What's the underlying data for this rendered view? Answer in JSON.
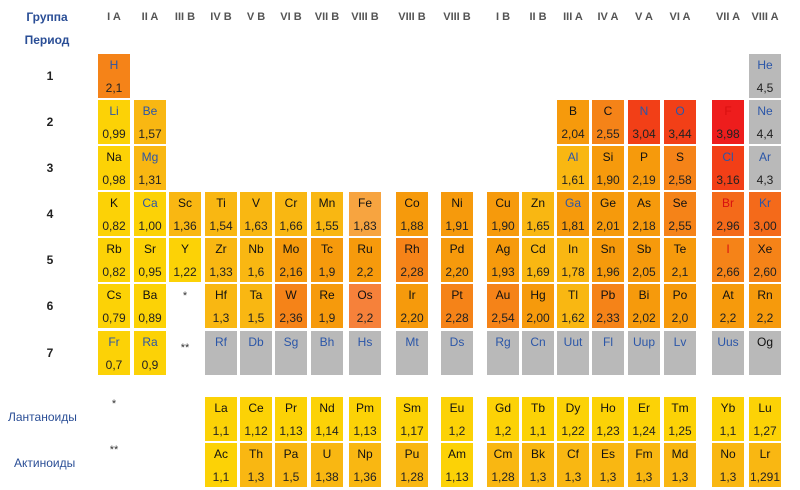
{
  "header": {
    "group_label": "Группа",
    "period_label": "Период",
    "groups": [
      "I A",
      "II A",
      "III B",
      "IV B",
      "V B",
      "VI B",
      "VII B",
      "VIII B",
      "VIII B",
      "VIII B",
      "I B",
      "II B",
      "III A",
      "IV A",
      "V A",
      "VI A",
      "VII A",
      "VIII A"
    ]
  },
  "periods": [
    "1",
    "2",
    "3",
    "4",
    "5",
    "6",
    "7"
  ],
  "row_labels": {
    "lanthanides": "Лантаноиды",
    "actinides": "Актиноиды"
  },
  "markers": {
    "lanthanide": "*",
    "actinide": "**"
  },
  "colors": {
    "yellow": "#fcd206",
    "gold": "#f9b712",
    "orange_light": "#f69a0c",
    "orange": "#f58318",
    "orange_dark": "#f46a1a",
    "red_orange": "#f23f17",
    "red": "#ee1d1d",
    "gray": "#b9b9b9",
    "fe": "#f7a440",
    "os": "#f6813a"
  },
  "elements": [
    {
      "sym": "H",
      "en": "2,1",
      "r": 0,
      "c": 0,
      "bg": "orange",
      "fc": "blue"
    },
    {
      "sym": "He",
      "en": "4,5",
      "r": 0,
      "c": 17,
      "bg": "gray",
      "fc": "blue"
    },
    {
      "sym": "Li",
      "en": "0,99",
      "r": 1,
      "c": 0,
      "bg": "yellow",
      "fc": "blue"
    },
    {
      "sym": "Be",
      "en": "1,57",
      "r": 1,
      "c": 1,
      "bg": "gold",
      "fc": "blue"
    },
    {
      "sym": "B",
      "en": "2,04",
      "r": 1,
      "c": 12,
      "bg": "orange_light",
      "fc": "black"
    },
    {
      "sym": "C",
      "en": "2,55",
      "r": 1,
      "c": 13,
      "bg": "orange",
      "fc": "black"
    },
    {
      "sym": "N",
      "en": "3,04",
      "r": 1,
      "c": 14,
      "bg": "red_orange",
      "fc": "blue"
    },
    {
      "sym": "O",
      "en": "3,44",
      "r": 1,
      "c": 15,
      "bg": "red_orange",
      "fc": "blue"
    },
    {
      "sym": "F",
      "en": "3,98",
      "r": 1,
      "c": 16,
      "bg": "red",
      "fc": "red"
    },
    {
      "sym": "Ne",
      "en": "4,4",
      "r": 1,
      "c": 17,
      "bg": "gray",
      "fc": "blue"
    },
    {
      "sym": "Na",
      "en": "0,98",
      "r": 2,
      "c": 0,
      "bg": "yellow",
      "fc": "black"
    },
    {
      "sym": "Mg",
      "en": "1,31",
      "r": 2,
      "c": 1,
      "bg": "gold",
      "fc": "blue"
    },
    {
      "sym": "Al",
      "en": "1,61",
      "r": 2,
      "c": 12,
      "bg": "gold",
      "fc": "blue"
    },
    {
      "sym": "Si",
      "en": "1,90",
      "r": 2,
      "c": 13,
      "bg": "orange_light",
      "fc": "black"
    },
    {
      "sym": "P",
      "en": "2,19",
      "r": 2,
      "c": 14,
      "bg": "orange_light",
      "fc": "black"
    },
    {
      "sym": "S",
      "en": "2,58",
      "r": 2,
      "c": 15,
      "bg": "orange",
      "fc": "black"
    },
    {
      "sym": "Cl",
      "en": "3,16",
      "r": 2,
      "c": 16,
      "bg": "red_orange",
      "fc": "blue"
    },
    {
      "sym": "Ar",
      "en": "4,3",
      "r": 2,
      "c": 17,
      "bg": "gray",
      "fc": "blue"
    },
    {
      "sym": "K",
      "en": "0,82",
      "r": 3,
      "c": 0,
      "bg": "yellow",
      "fc": "black"
    },
    {
      "sym": "Ca",
      "en": "1,00",
      "r": 3,
      "c": 1,
      "bg": "yellow",
      "fc": "blue"
    },
    {
      "sym": "Sc",
      "en": "1,36",
      "r": 3,
      "c": 2,
      "bg": "gold",
      "fc": "black"
    },
    {
      "sym": "Ti",
      "en": "1,54",
      "r": 3,
      "c": 3,
      "bg": "gold",
      "fc": "black"
    },
    {
      "sym": "V",
      "en": "1,63",
      "r": 3,
      "c": 4,
      "bg": "gold",
      "fc": "black"
    },
    {
      "sym": "Cr",
      "en": "1,66",
      "r": 3,
      "c": 5,
      "bg": "gold",
      "fc": "black"
    },
    {
      "sym": "Mn",
      "en": "1,55",
      "r": 3,
      "c": 6,
      "bg": "gold",
      "fc": "black"
    },
    {
      "sym": "Fe",
      "en": "1,83",
      "r": 3,
      "c": 7,
      "bg": "orange_light",
      "fc": "black"
    },
    {
      "sym": "Co",
      "en": "1,88",
      "r": 3,
      "c": 8,
      "bg": "orange_light",
      "fc": "black"
    },
    {
      "sym": "Ni",
      "en": "1,91",
      "r": 3,
      "c": 9,
      "bg": "orange_light",
      "fc": "black"
    },
    {
      "sym": "Cu",
      "en": "1,90",
      "r": 3,
      "c": 10,
      "bg": "orange_light",
      "fc": "black"
    },
    {
      "sym": "Zn",
      "en": "1,65",
      "r": 3,
      "c": 11,
      "bg": "gold",
      "fc": "black"
    },
    {
      "sym": "Ga",
      "en": "1,81",
      "r": 3,
      "c": 12,
      "bg": "orange_light",
      "fc": "blue"
    },
    {
      "sym": "Ge",
      "en": "2,01",
      "r": 3,
      "c": 13,
      "bg": "orange_light",
      "fc": "black"
    },
    {
      "sym": "As",
      "en": "2,18",
      "r": 3,
      "c": 14,
      "bg": "orange_light",
      "fc": "black"
    },
    {
      "sym": "Se",
      "en": "2,55",
      "r": 3,
      "c": 15,
      "bg": "orange",
      "fc": "black"
    },
    {
      "sym": "Br",
      "en": "2,96",
      "r": 3,
      "c": 16,
      "bg": "orange_dark",
      "fc": "red"
    },
    {
      "sym": "Kr",
      "en": "3,00",
      "r": 3,
      "c": 17,
      "bg": "orange_dark",
      "fc": "blue"
    },
    {
      "sym": "Rb",
      "en": "0,82",
      "r": 4,
      "c": 0,
      "bg": "yellow",
      "fc": "black"
    },
    {
      "sym": "Sr",
      "en": "0,95",
      "r": 4,
      "c": 1,
      "bg": "yellow",
      "fc": "black"
    },
    {
      "sym": "Y",
      "en": "1,22",
      "r": 4,
      "c": 2,
      "bg": "yellow",
      "fc": "black"
    },
    {
      "sym": "Zr",
      "en": "1,33",
      "r": 4,
      "c": 3,
      "bg": "gold",
      "fc": "black"
    },
    {
      "sym": "Nb",
      "en": "1,6",
      "r": 4,
      "c": 4,
      "bg": "gold",
      "fc": "black"
    },
    {
      "sym": "Mo",
      "en": "2,16",
      "r": 4,
      "c": 5,
      "bg": "orange_light",
      "fc": "black"
    },
    {
      "sym": "Tc",
      "en": "1,9",
      "r": 4,
      "c": 6,
      "bg": "orange_light",
      "fc": "black"
    },
    {
      "sym": "Ru",
      "en": "2,2",
      "r": 4,
      "c": 7,
      "bg": "orange_light",
      "fc": "black"
    },
    {
      "sym": "Rh",
      "en": "2,28",
      "r": 4,
      "c": 8,
      "bg": "orange",
      "fc": "black"
    },
    {
      "sym": "Pd",
      "en": "2,20",
      "r": 4,
      "c": 9,
      "bg": "orange_light",
      "fc": "black"
    },
    {
      "sym": "Ag",
      "en": "1,93",
      "r": 4,
      "c": 10,
      "bg": "orange_light",
      "fc": "black"
    },
    {
      "sym": "Cd",
      "en": "1,69",
      "r": 4,
      "c": 11,
      "bg": "gold",
      "fc": "black"
    },
    {
      "sym": "In",
      "en": "1,78",
      "r": 4,
      "c": 12,
      "bg": "gold",
      "fc": "black"
    },
    {
      "sym": "Sn",
      "en": "1,96",
      "r": 4,
      "c": 13,
      "bg": "orange_light",
      "fc": "black"
    },
    {
      "sym": "Sb",
      "en": "2,05",
      "r": 4,
      "c": 14,
      "bg": "orange_light",
      "fc": "black"
    },
    {
      "sym": "Te",
      "en": "2,1",
      "r": 4,
      "c": 15,
      "bg": "orange_light",
      "fc": "black"
    },
    {
      "sym": "I",
      "en": "2,66",
      "r": 4,
      "c": 16,
      "bg": "orange",
      "fc": "red"
    },
    {
      "sym": "Xe",
      "en": "2,60",
      "r": 4,
      "c": 17,
      "bg": "orange",
      "fc": "black"
    },
    {
      "sym": "Cs",
      "en": "0,79",
      "r": 5,
      "c": 0,
      "bg": "yellow",
      "fc": "black"
    },
    {
      "sym": "Ba",
      "en": "0,89",
      "r": 5,
      "c": 1,
      "bg": "yellow",
      "fc": "black"
    },
    {
      "sym": "Hf",
      "en": "1,3",
      "r": 5,
      "c": 3,
      "bg": "gold",
      "fc": "black"
    },
    {
      "sym": "Ta",
      "en": "1,5",
      "r": 5,
      "c": 4,
      "bg": "gold",
      "fc": "black"
    },
    {
      "sym": "W",
      "en": "2,36",
      "r": 5,
      "c": 5,
      "bg": "orange",
      "fc": "black"
    },
    {
      "sym": "Re",
      "en": "1,9",
      "r": 5,
      "c": 6,
      "bg": "orange_light",
      "fc": "black"
    },
    {
      "sym": "Os",
      "en": "2,2",
      "r": 5,
      "c": 7,
      "bg": "orange_light",
      "fc": "black"
    },
    {
      "sym": "Ir",
      "en": "2,20",
      "r": 5,
      "c": 8,
      "bg": "orange_light",
      "fc": "black"
    },
    {
      "sym": "Pt",
      "en": "2,28",
      "r": 5,
      "c": 9,
      "bg": "orange",
      "fc": "black"
    },
    {
      "sym": "Au",
      "en": "2,54",
      "r": 5,
      "c": 10,
      "bg": "orange",
      "fc": "black"
    },
    {
      "sym": "Hg",
      "en": "2,00",
      "r": 5,
      "c": 11,
      "bg": "orange_light",
      "fc": "black"
    },
    {
      "sym": "Tl",
      "en": "1,62",
      "r": 5,
      "c": 12,
      "bg": "gold",
      "fc": "black"
    },
    {
      "sym": "Pb",
      "en": "2,33",
      "r": 5,
      "c": 13,
      "bg": "orange",
      "fc": "black"
    },
    {
      "sym": "Bi",
      "en": "2,02",
      "r": 5,
      "c": 14,
      "bg": "orange_light",
      "fc": "black"
    },
    {
      "sym": "Po",
      "en": "2,0",
      "r": 5,
      "c": 15,
      "bg": "orange_light",
      "fc": "black"
    },
    {
      "sym": "At",
      "en": "2,2",
      "r": 5,
      "c": 16,
      "bg": "orange_light",
      "fc": "black"
    },
    {
      "sym": "Rn",
      "en": "2,2",
      "r": 5,
      "c": 17,
      "bg": "orange_light",
      "fc": "black"
    },
    {
      "sym": "Fr",
      "en": "0,7",
      "r": 6,
      "c": 0,
      "bg": "yellow",
      "fc": "blue"
    },
    {
      "sym": "Ra",
      "en": "0,9",
      "r": 6,
      "c": 1,
      "bg": "yellow",
      "fc": "blue"
    },
    {
      "sym": "Rf",
      "en": "",
      "r": 6,
      "c": 3,
      "bg": "gray",
      "fc": "blue"
    },
    {
      "sym": "Db",
      "en": "",
      "r": 6,
      "c": 4,
      "bg": "gray",
      "fc": "blue"
    },
    {
      "sym": "Sg",
      "en": "",
      "r": 6,
      "c": 5,
      "bg": "gray",
      "fc": "blue"
    },
    {
      "sym": "Bh",
      "en": "",
      "r": 6,
      "c": 6,
      "bg": "gray",
      "fc": "blue"
    },
    {
      "sym": "Hs",
      "en": "",
      "r": 6,
      "c": 7,
      "bg": "gray",
      "fc": "blue"
    },
    {
      "sym": "Mt",
      "en": "",
      "r": 6,
      "c": 8,
      "bg": "gray",
      "fc": "blue"
    },
    {
      "sym": "Ds",
      "en": "",
      "r": 6,
      "c": 9,
      "bg": "gray",
      "fc": "blue"
    },
    {
      "sym": "Rg",
      "en": "",
      "r": 6,
      "c": 10,
      "bg": "gray",
      "fc": "blue"
    },
    {
      "sym": "Cn",
      "en": "",
      "r": 6,
      "c": 11,
      "bg": "gray",
      "fc": "blue"
    },
    {
      "sym": "Uut",
      "en": "",
      "r": 6,
      "c": 12,
      "bg": "gray",
      "fc": "blue"
    },
    {
      "sym": "Fl",
      "en": "",
      "r": 6,
      "c": 13,
      "bg": "gray",
      "fc": "blue"
    },
    {
      "sym": "Uup",
      "en": "",
      "r": 6,
      "c": 14,
      "bg": "gray",
      "fc": "blue"
    },
    {
      "sym": "Lv",
      "en": "",
      "r": 6,
      "c": 15,
      "bg": "gray",
      "fc": "blue"
    },
    {
      "sym": "Uus",
      "en": "",
      "r": 6,
      "c": 16,
      "bg": "gray",
      "fc": "blue"
    },
    {
      "sym": "Og",
      "en": "",
      "r": 6,
      "c": 17,
      "bg": "gray",
      "fc": "black"
    },
    {
      "sym": "La",
      "en": "1,1",
      "r": 7,
      "c": 3,
      "bg": "yellow",
      "fc": "black"
    },
    {
      "sym": "Ce",
      "en": "1,12",
      "r": 7,
      "c": 4,
      "bg": "yellow",
      "fc": "black"
    },
    {
      "sym": "Pr",
      "en": "1,13",
      "r": 7,
      "c": 5,
      "bg": "yellow",
      "fc": "black"
    },
    {
      "sym": "Nd",
      "en": "1,14",
      "r": 7,
      "c": 6,
      "bg": "yellow",
      "fc": "black"
    },
    {
      "sym": "Pm",
      "en": "1,13",
      "r": 7,
      "c": 7,
      "bg": "yellow",
      "fc": "black"
    },
    {
      "sym": "Sm",
      "en": "1,17",
      "r": 7,
      "c": 8,
      "bg": "yellow",
      "fc": "black"
    },
    {
      "sym": "Eu",
      "en": "1,2",
      "r": 7,
      "c": 9,
      "bg": "yellow",
      "fc": "black"
    },
    {
      "sym": "Gd",
      "en": "1,2",
      "r": 7,
      "c": 10,
      "bg": "yellow",
      "fc": "black"
    },
    {
      "sym": "Tb",
      "en": "1,1",
      "r": 7,
      "c": 11,
      "bg": "yellow",
      "fc": "black"
    },
    {
      "sym": "Dy",
      "en": "1,22",
      "r": 7,
      "c": 12,
      "bg": "yellow",
      "fc": "black"
    },
    {
      "sym": "Ho",
      "en": "1,23",
      "r": 7,
      "c": 13,
      "bg": "yellow",
      "fc": "black"
    },
    {
      "sym": "Er",
      "en": "1,24",
      "r": 7,
      "c": 14,
      "bg": "yellow",
      "fc": "black"
    },
    {
      "sym": "Tm",
      "en": "1,25",
      "r": 7,
      "c": 15,
      "bg": "yellow",
      "fc": "black"
    },
    {
      "sym": "Yb",
      "en": "1,1",
      "r": 7,
      "c": 16,
      "bg": "yellow",
      "fc": "black"
    },
    {
      "sym": "Lu",
      "en": "1,27",
      "r": 7,
      "c": 17,
      "bg": "yellow",
      "fc": "black"
    },
    {
      "sym": "Ac",
      "en": "1,1",
      "r": 8,
      "c": 3,
      "bg": "yellow",
      "fc": "black"
    },
    {
      "sym": "Th",
      "en": "1,3",
      "r": 8,
      "c": 4,
      "bg": "gold",
      "fc": "black"
    },
    {
      "sym": "Pa",
      "en": "1,5",
      "r": 8,
      "c": 5,
      "bg": "gold",
      "fc": "black"
    },
    {
      "sym": "U",
      "en": "1,38",
      "r": 8,
      "c": 6,
      "bg": "gold",
      "fc": "black"
    },
    {
      "sym": "Np",
      "en": "1,36",
      "r": 8,
      "c": 7,
      "bg": "gold",
      "fc": "black"
    },
    {
      "sym": "Pu",
      "en": "1,28",
      "r": 8,
      "c": 8,
      "bg": "gold",
      "fc": "black"
    },
    {
      "sym": "Am",
      "en": "1,13",
      "r": 8,
      "c": 9,
      "bg": "yellow",
      "fc": "black"
    },
    {
      "sym": "Cm",
      "en": "1,28",
      "r": 8,
      "c": 10,
      "bg": "gold",
      "fc": "black"
    },
    {
      "sym": "Bk",
      "en": "1,3",
      "r": 8,
      "c": 11,
      "bg": "gold",
      "fc": "black"
    },
    {
      "sym": "Cf",
      "en": "1,3",
      "r": 8,
      "c": 12,
      "bg": "gold",
      "fc": "black"
    },
    {
      "sym": "Es",
      "en": "1,3",
      "r": 8,
      "c": 13,
      "bg": "gold",
      "fc": "black"
    },
    {
      "sym": "Fm",
      "en": "1,3",
      "r": 8,
      "c": 14,
      "bg": "gold",
      "fc": "black"
    },
    {
      "sym": "Md",
      "en": "1,3",
      "r": 8,
      "c": 15,
      "bg": "gold",
      "fc": "black"
    },
    {
      "sym": "No",
      "en": "1,3",
      "r": 8,
      "c": 16,
      "bg": "gold",
      "fc": "black"
    },
    {
      "sym": "Lr",
      "en": "1,291",
      "r": 8,
      "c": 17,
      "bg": "gold",
      "fc": "black"
    }
  ]
}
